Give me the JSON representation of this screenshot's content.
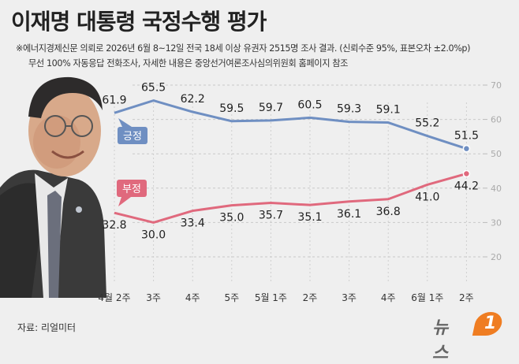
{
  "title": "이재명 대통령 국정수행 평가",
  "notes": [
    "※에너지경제신문 의뢰로 2026년 6월 8~12일 전국 18세 이상 유권자 2515명 조사 결과. (신뢰수준 95%, 표본오차 ±2.0%p)",
    "무선 100% 자동응답 전화조사, 자세한 내용은 중앙선거여론조사심의위원회 홈페이지 참조"
  ],
  "source": "자료: 리얼미터",
  "logo": {
    "text": "뉴스",
    "number": "1"
  },
  "colors": {
    "positive": "#6f8fc2",
    "negative": "#e0697d",
    "grid": "#c9c9c9"
  },
  "chart_data": {
    "type": "line",
    "categories": [
      "4월 2주",
      "3주",
      "4주",
      "5주",
      "5월 1주",
      "2주",
      "3주",
      "4주",
      "6월 1주",
      "2주"
    ],
    "series": [
      {
        "name": "긍정",
        "values": [
          61.9,
          65.5,
          62.2,
          59.5,
          59.7,
          60.5,
          59.3,
          59.1,
          55.2,
          51.5
        ]
      },
      {
        "name": "부정",
        "values": [
          32.8,
          30.0,
          33.4,
          35.0,
          35.7,
          35.1,
          36.1,
          36.8,
          41.0,
          44.2
        ]
      }
    ],
    "value_labels": {
      "긍정": [
        "61.9",
        "65.5",
        "62.2",
        "59.5",
        "59.7",
        "60.5",
        "59.3",
        "59.1",
        "55.2",
        "51.5"
      ],
      "부정": [
        "32.8",
        "30.0",
        "33.4",
        "35.0",
        "35.7",
        "35.1",
        "36.1",
        "36.8",
        "41.0",
        "44.2"
      ]
    },
    "yticks": [
      "20",
      "30",
      "40",
      "50",
      "60",
      "70"
    ],
    "ylim": [
      20,
      70
    ],
    "gridlines": true,
    "title": "이재명 대통령 국정수행 평가"
  }
}
